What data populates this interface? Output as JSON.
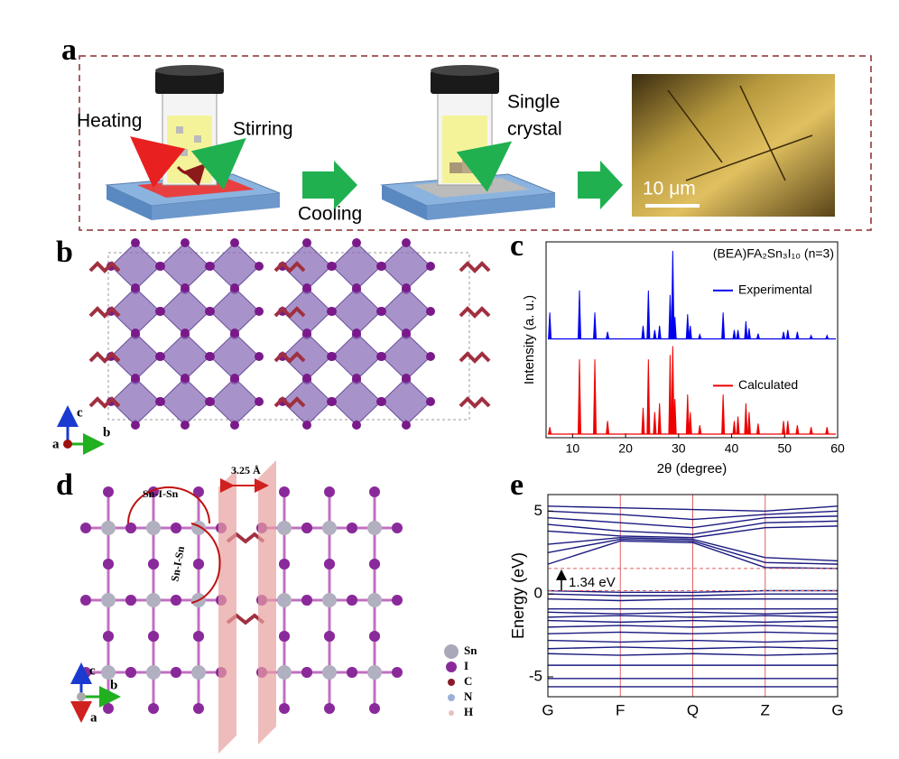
{
  "panel_labels": [
    "a",
    "b",
    "c",
    "d",
    "e"
  ],
  "panel_a": {
    "heating": "Heating",
    "stirring": "Stirring",
    "cooling": "Cooling",
    "single": "Single",
    "crystal": "crystal",
    "scale_bar": "10 μm"
  },
  "panel_b": {
    "axis_c": "c",
    "axis_a": "a",
    "axis_b": "b"
  },
  "panel_d": {
    "angle_1": "Sn-I-Sn",
    "angle_2": "Sn-I-Sn",
    "spacing": "3.25 Å",
    "legend": [
      "Sn",
      "I",
      "C",
      "N",
      "H"
    ],
    "axis_c": "c",
    "axis_b": "b",
    "axis_a": "a"
  },
  "chart_data": [
    {
      "type": "spectrum",
      "title": "(BEA)FA₂Sn₃I₁₀ (n=3)",
      "x_label": "2θ (degree)",
      "y_label": "Intensity (a. u.)",
      "xlim": [
        5,
        60
      ],
      "xticks": [
        10,
        20,
        30,
        40,
        50,
        60
      ],
      "ylim": [
        0,
        100
      ],
      "series": [
        {
          "name": "Experimental",
          "color": "#0000ee",
          "x": [
            5.7,
            11.3,
            14.2,
            16.6,
            23.3,
            24.3,
            25.5,
            26.4,
            28.4,
            28.9,
            29.3,
            31.7,
            32.2,
            34,
            38.4,
            40.5,
            41.2,
            42.7,
            43.3,
            45,
            49.8,
            50.6,
            52.4,
            55,
            58
          ],
          "values": [
            30,
            55,
            30,
            8,
            15,
            55,
            10,
            15,
            50,
            100,
            25,
            28,
            15,
            5,
            30,
            10,
            10,
            20,
            12,
            6,
            8,
            10,
            8,
            4,
            4
          ]
        },
        {
          "name": "Calculated",
          "color": "#ee0000",
          "x": [
            5.7,
            11.3,
            14.2,
            16.6,
            23.3,
            24.3,
            25.5,
            26.4,
            28.4,
            28.9,
            29.3,
            31.7,
            32.2,
            34,
            38.4,
            40.5,
            41.2,
            42.7,
            43.3,
            45,
            49.8,
            50.6,
            52.4,
            55,
            58
          ],
          "values": [
            8,
            85,
            85,
            15,
            30,
            85,
            25,
            35,
            90,
            100,
            40,
            45,
            25,
            10,
            45,
            15,
            20,
            35,
            25,
            12,
            15,
            15,
            10,
            8,
            8
          ]
        }
      ]
    },
    {
      "type": "band",
      "y_label": "Energy (eV)",
      "categories": [
        "G",
        "F",
        "Q",
        "Z",
        "G"
      ],
      "ylim": [
        -6.2,
        6.0
      ],
      "yticks": [
        -5,
        0,
        5
      ],
      "gap_lines": [
        0.2,
        1.54
      ],
      "annotation": "1.34 eV",
      "color": "#1a1a80",
      "kline_color": "#e06060",
      "bands": [
        [
          5.3,
          5.2,
          5.1,
          5.0,
          5.3
        ],
        [
          5.0,
          4.8,
          4.5,
          4.8,
          5.0
        ],
        [
          4.6,
          4.3,
          4.0,
          4.6,
          4.7
        ],
        [
          4.2,
          3.8,
          3.6,
          4.3,
          4.4
        ],
        [
          3.8,
          3.5,
          3.4,
          4.0,
          4.1
        ],
        [
          3.0,
          3.4,
          3.3,
          2.2,
          2.0
        ],
        [
          2.5,
          3.3,
          3.2,
          1.9,
          1.8
        ],
        [
          1.8,
          3.2,
          3.1,
          1.6,
          1.54
        ],
        [
          0.2,
          0.1,
          0.1,
          0.2,
          0.2
        ],
        [
          0,
          -0.1,
          -0.1,
          0,
          0
        ],
        [
          -0.3,
          -0.4,
          -0.3,
          -0.3,
          -0.3
        ],
        [
          -0.9,
          -0.9,
          -0.9,
          -0.9,
          -0.9
        ],
        [
          -1.1,
          -1.2,
          -1.1,
          -1.2,
          -1.1
        ],
        [
          -1.4,
          -1.3,
          -1.4,
          -1.3,
          -1.4
        ],
        [
          -1.6,
          -1.7,
          -1.6,
          -1.7,
          -1.6
        ],
        [
          -2.0,
          -1.9,
          -2.0,
          -1.9,
          -2.0
        ],
        [
          -2.4,
          -2.3,
          -2.4,
          -2.3,
          -2.4
        ],
        [
          -2.8,
          -2.9,
          -2.8,
          -2.9,
          -2.8
        ],
        [
          -3.3,
          -3.2,
          -3.3,
          -3.2,
          -3.3
        ],
        [
          -3.6,
          -3.7,
          -3.6,
          -3.7,
          -3.6
        ],
        [
          -4.3,
          -4.3,
          -4.3,
          -4.3,
          -4.3
        ],
        [
          -5.1,
          -5.1,
          -5.1,
          -5.1,
          -5.1
        ],
        [
          -5.6,
          -5.6,
          -5.6,
          -5.6,
          -5.6
        ]
      ]
    }
  ]
}
